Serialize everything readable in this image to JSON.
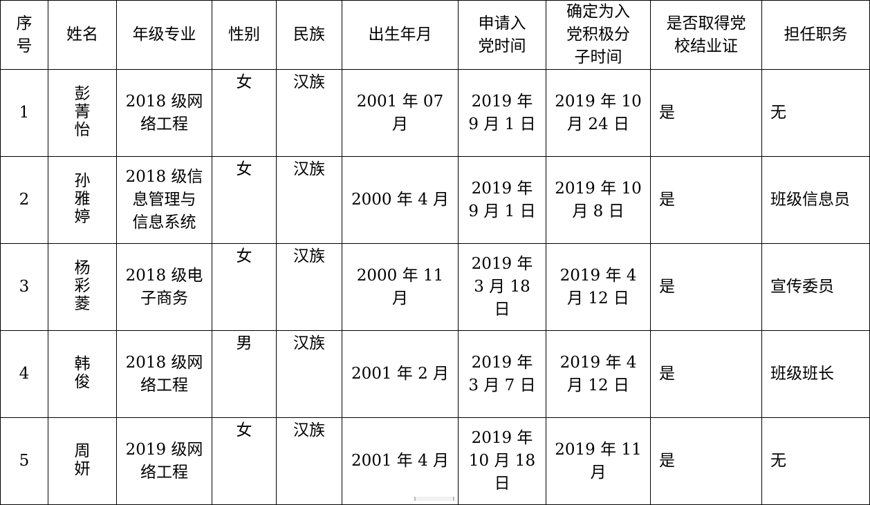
{
  "table": {
    "headers": [
      "序号",
      "姓名",
      "年级专业",
      "性别",
      "民族",
      "出生年月",
      "申请入党时间",
      "确定为入党积极分子时间",
      "是否取得党校结业证",
      "担任职务"
    ],
    "rows": [
      {
        "no": "1",
        "name": "彭菁怡",
        "major": "2018 级网络工程",
        "gender": "女",
        "ethnic": "汉族",
        "birth": "2001 年 07 月",
        "apply": "2019 年 9 月 1 日",
        "activist": "2019 年 10 月 24 日",
        "cert": "是",
        "role": "无"
      },
      {
        "no": "2",
        "name": "孙雅婷",
        "major": "2018 级信息管理与信息系统",
        "gender": "女",
        "ethnic": "汉族",
        "birth": "2000 年 4 月",
        "apply": "2019 年 9 月 1 日",
        "activist": "2019 年 10 月 8 日",
        "cert": "是",
        "role": "班级信息员"
      },
      {
        "no": "3",
        "name": "杨彩菱",
        "major": "2018 级电子商务",
        "gender": "女",
        "ethnic": "汉族",
        "birth": "2000 年 11 月",
        "apply": "2019 年 3 月 18 日",
        "activist": "2019 年 4 月 12 日",
        "cert": "是",
        "role": "宣传委员"
      },
      {
        "no": "4",
        "name": "韩俊",
        "major": "2018 级网络工程",
        "gender": "男",
        "ethnic": "汉族",
        "birth": "2001 年 2 月",
        "apply": "2019 年 3 月 7 日",
        "activist": "2019 年 4 月 12 日",
        "cert": "是",
        "role": "班级班长"
      },
      {
        "no": "5",
        "name": "周妍",
        "major": "2019 级网络工程",
        "gender": "女",
        "ethnic": "汉族",
        "birth": "2001 年 4 月",
        "apply": "2019 年 10 月 18 日",
        "activist": "2019 年 11 月",
        "cert": "是",
        "role": "无"
      }
    ]
  }
}
